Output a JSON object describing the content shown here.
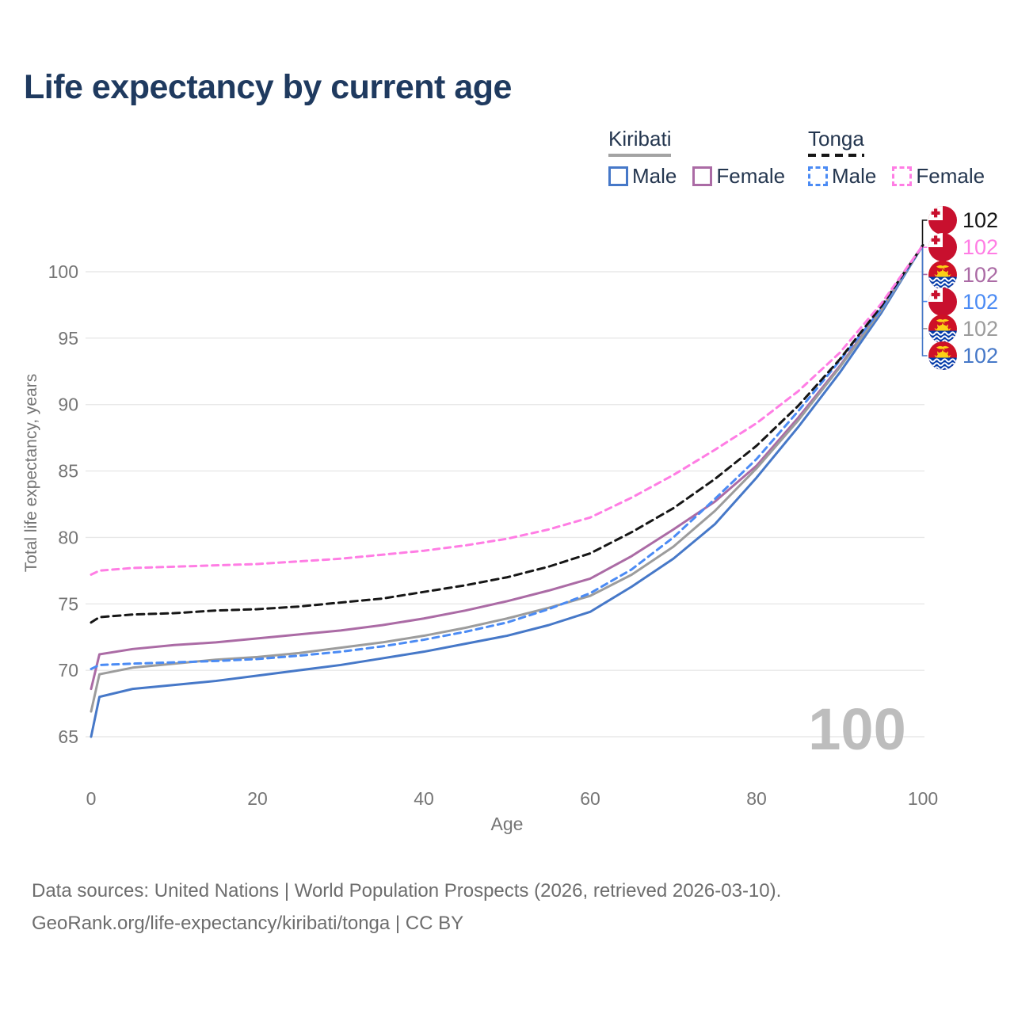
{
  "header": {
    "title": "Life expectancy by current age"
  },
  "legend": {
    "groups": [
      {
        "label": "Kiribati",
        "underline_color": "#a3a3a3",
        "underline_style": "solid",
        "items": [
          {
            "label": "Male",
            "color": "#4678c8",
            "style": "solid"
          },
          {
            "label": "Female",
            "color": "#ab6ba5",
            "style": "solid"
          }
        ]
      },
      {
        "label": "Tonga",
        "underline_color": "#161616",
        "underline_style": "dashed",
        "items": [
          {
            "label": "Male",
            "color": "#4b8bf4",
            "style": "dashed"
          },
          {
            "label": "Female",
            "color": "#ff7de4",
            "style": "dashed"
          }
        ]
      }
    ]
  },
  "chart_data": {
    "type": "line",
    "title": "Life expectancy by current age",
    "xlabel": "Age",
    "ylabel": "Total life expectancy, years",
    "x_ticks": [
      0,
      20,
      40,
      60,
      80,
      100
    ],
    "y_ticks": [
      65,
      70,
      75,
      80,
      85,
      90,
      95,
      100
    ],
    "xlim": [
      0,
      100
    ],
    "ylim": [
      65,
      102
    ],
    "grid": true,
    "watermark": "100",
    "x": [
      0,
      1,
      5,
      10,
      15,
      20,
      25,
      30,
      35,
      40,
      45,
      50,
      55,
      60,
      65,
      70,
      75,
      80,
      85,
      90,
      95,
      100
    ],
    "series": [
      {
        "id": "kiribati-male",
        "name": "Kiribati Male",
        "color": "#4678c8",
        "dash": "solid",
        "values": [
          65.0,
          68.0,
          68.6,
          68.9,
          69.2,
          69.6,
          70.0,
          70.4,
          70.9,
          71.4,
          72.0,
          72.6,
          73.4,
          74.4,
          76.3,
          78.4,
          81.0,
          84.5,
          88.3,
          92.4,
          96.9,
          102
        ]
      },
      {
        "id": "kiribati-female",
        "name": "Kiribati Female",
        "color": "#ab6ba5",
        "dash": "solid",
        "values": [
          68.6,
          71.2,
          71.6,
          71.9,
          72.1,
          72.4,
          72.7,
          73.0,
          73.4,
          73.9,
          74.5,
          75.2,
          76.0,
          76.9,
          78.6,
          80.6,
          82.7,
          85.4,
          89.0,
          92.9,
          97.2,
          102
        ]
      },
      {
        "id": "kiribati-all",
        "name": "Kiribati",
        "color": "#9c9c9c",
        "dash": "solid",
        "values": [
          66.9,
          69.7,
          70.2,
          70.5,
          70.8,
          71.0,
          71.3,
          71.7,
          72.1,
          72.6,
          73.2,
          73.9,
          74.7,
          75.6,
          77.2,
          79.3,
          82.0,
          85.2,
          88.8,
          92.8,
          97.1,
          102
        ]
      },
      {
        "id": "tonga-male",
        "name": "Tonga Male",
        "color": "#4b8bf4",
        "dash": "dashed",
        "values": [
          70.1,
          70.4,
          70.5,
          70.6,
          70.7,
          70.85,
          71.1,
          71.4,
          71.8,
          72.3,
          72.9,
          73.6,
          74.6,
          75.8,
          77.6,
          80.0,
          82.9,
          85.9,
          89.5,
          93.3,
          97.2,
          102
        ]
      },
      {
        "id": "tonga-all",
        "name": "Tonga",
        "color": "#161616",
        "dash": "dashed",
        "values": [
          73.6,
          74.0,
          74.2,
          74.3,
          74.5,
          74.6,
          74.8,
          75.1,
          75.4,
          75.9,
          76.4,
          77.0,
          77.8,
          78.8,
          80.4,
          82.2,
          84.4,
          86.9,
          89.9,
          93.4,
          97.4,
          102
        ]
      },
      {
        "id": "tonga-female",
        "name": "Tonga Female",
        "color": "#ff7de4",
        "dash": "dashed",
        "values": [
          77.2,
          77.5,
          77.7,
          77.8,
          77.9,
          78.0,
          78.2,
          78.4,
          78.7,
          79.0,
          79.4,
          79.9,
          80.6,
          81.5,
          83.0,
          84.7,
          86.6,
          88.6,
          91.0,
          93.9,
          97.6,
          102
        ]
      }
    ]
  },
  "endpoint_labels": [
    {
      "series": "Tonga",
      "flag": "tonga",
      "value": "102",
      "color": "#161616"
    },
    {
      "series": "Tonga Female",
      "flag": "tonga",
      "value": "102",
      "color": "#ff7de4"
    },
    {
      "series": "Kiribati Female",
      "flag": "kiribati",
      "value": "102",
      "color": "#ab6ba5"
    },
    {
      "series": "Tonga Male",
      "flag": "tonga",
      "value": "102",
      "color": "#4b8bf4"
    },
    {
      "series": "Kiribati",
      "flag": "kiribati",
      "value": "102",
      "color": "#9c9c9c"
    },
    {
      "series": "Kiribati Male",
      "flag": "kiribati",
      "value": "102",
      "color": "#4678c8"
    }
  ],
  "footer": {
    "line1": "Data sources: United Nations | World Population Prospects (2026, retrieved 2026-03-10).",
    "line2": "GeoRank.org/life-expectancy/kiribati/tonga | CC BY"
  }
}
